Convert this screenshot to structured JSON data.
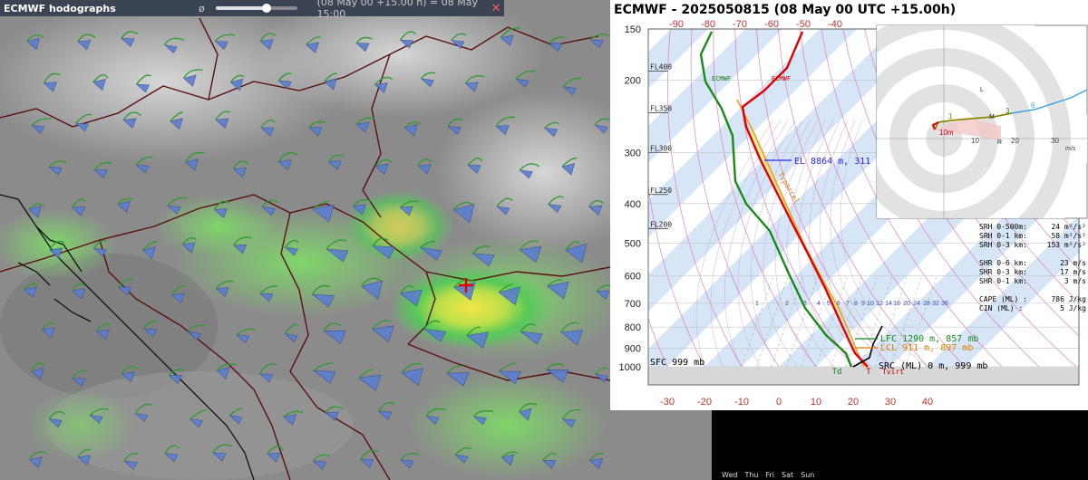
{
  "map": {
    "title": "ECMWF hodographs",
    "slider_label": "ø",
    "slider_value": 0.62,
    "time_label": "(08 May 00 +15.00 h) = 08 May 15:00",
    "close_label": "✕",
    "marker_icon": "red-cross-marker-icon"
  },
  "sounding": {
    "title": "ECMWF - 2025050815 (08 May 00 UTC +15.00h)",
    "pressure_labels": [
      "150",
      "200",
      "300",
      "400",
      "500",
      "600",
      "700",
      "800",
      "900",
      "1000"
    ],
    "flight_levels": [
      "FL400",
      "FL350",
      "FL300",
      "FL250",
      "FL200"
    ],
    "top_temp_labels": [
      "-90",
      "-80",
      "-70",
      "-60",
      "-50",
      "-40"
    ],
    "bottom_temp_labels": [
      "-30",
      "-20",
      "-10",
      "0",
      "10",
      "20",
      "30",
      "40"
    ],
    "mixing_labels": [
      "1",
      "2",
      "3",
      "4",
      "5",
      "6",
      "7",
      "8",
      "9",
      "10",
      "12",
      "14",
      "16",
      "20",
      "24",
      "28",
      "32",
      "36"
    ],
    "curve_labels": {
      "dewpoint_model": "ECMWF",
      "temp_model": "ECMWF",
      "parcel": "Tvparcel",
      "td": "Td",
      "t": "T",
      "tvirt": "Tvirt"
    },
    "el_label": "EL 8864 m, 311 mb",
    "lfc_label": "LFC 1290 m, 857 mb",
    "lcl_label": "LCL 911 m, 897 mb",
    "sfc_label": "SFC 999 mb",
    "src_label": "SRC (ML) 0 m, 999 mb",
    "hodograph": {
      "ring_labels": [
        "10",
        "20",
        "30"
      ],
      "unit": "m/s",
      "point_labels": [
        "1",
        "3",
        "6",
        "10m",
        "L",
        "R",
        "M"
      ]
    },
    "indices": [
      {
        "label": "SRH 0-500m:",
        "value": "24 m²/s²"
      },
      {
        "label": "SRH 0-1 km:",
        "value": "58 m²/s²"
      },
      {
        "label": "SRH 0-3 km:",
        "value": "153 m²/s²"
      },
      {
        "label": "",
        "value": ""
      },
      {
        "label": "SHR 0-6 km:",
        "value": "23 m/s"
      },
      {
        "label": "SHR 0-3 km:",
        "value": "17 m/s"
      },
      {
        "label": "SHR 0-1 km:",
        "value": "3 m/s"
      },
      {
        "label": "",
        "value": ""
      },
      {
        "label": "CAPE (ML) :",
        "value": "786 J/kg"
      },
      {
        "label": "CIN (ML) :",
        "value": "5 J/kg"
      }
    ],
    "colors": {
      "temp": "#e00000",
      "dewpoint": "#1a8a1a",
      "parcel": "#e8a020",
      "wind_profile": "#0000aa"
    }
  },
  "toolbar": {
    "items": [
      "Wed",
      "Thu",
      "Fri",
      "Sat",
      "Sun"
    ]
  }
}
